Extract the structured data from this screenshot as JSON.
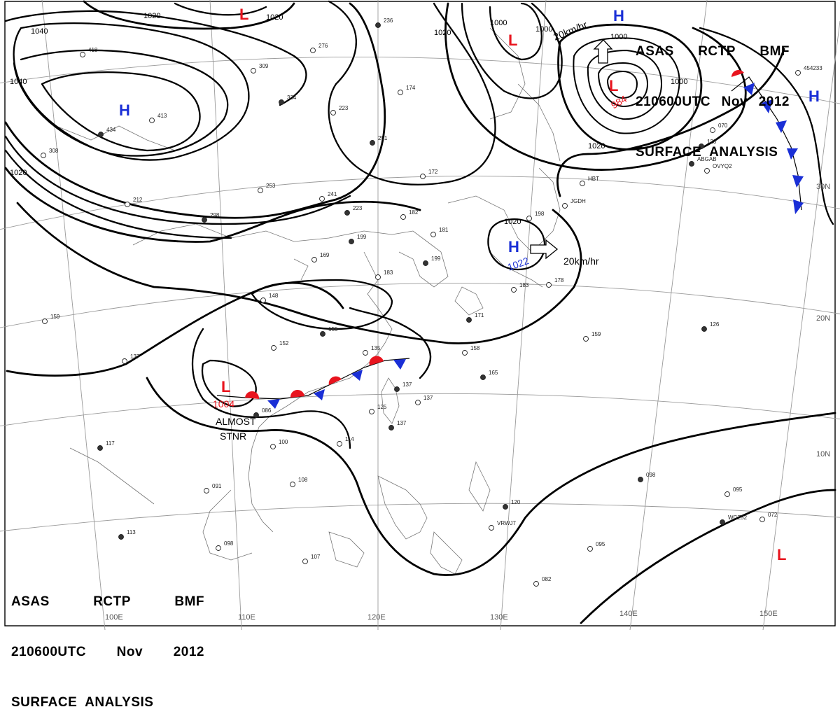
{
  "header": {
    "line1": [
      "ASAS",
      "RCTP",
      "BMF"
    ],
    "line2": [
      "210600UTC",
      "Nov",
      "2012"
    ],
    "line3": "SURFACE  ANALYSIS"
  },
  "longitude_labels": [
    "100E",
    "110E",
    "120E",
    "130E",
    "140E",
    "150E"
  ],
  "latitude_labels": [
    "30N",
    "20N",
    "10N"
  ],
  "isobar_labels": [
    "1020",
    "1020",
    "1040",
    "1040",
    "1020",
    "1020",
    "1020",
    "1000",
    "1000",
    "1000",
    "1000",
    "1020"
  ],
  "pressure_centers": [
    {
      "type": "H",
      "value": ""
    },
    {
      "type": "L",
      "value": ""
    },
    {
      "type": "L",
      "value": ""
    },
    {
      "type": "L",
      "value": "984"
    },
    {
      "type": "H",
      "value": ""
    },
    {
      "type": "H",
      "value": ""
    },
    {
      "type": "H",
      "value": "1022"
    },
    {
      "type": "L",
      "value": "1004"
    },
    {
      "type": "L",
      "value": ""
    }
  ],
  "motion_labels": [
    "20km/hr",
    "20km/hr"
  ],
  "annotations": [
    "ALMOST",
    "STNR"
  ],
  "station_values": [
    "236",
    "276",
    "309",
    "334",
    "223",
    "174",
    "251",
    "172",
    "182",
    "199",
    "169",
    "181",
    "199",
    "183",
    "148",
    "155",
    "152",
    "135",
    "137",
    "137",
    "125",
    "137",
    "114",
    "100",
    "086",
    "091",
    "108",
    "113",
    "098",
    "107",
    "117",
    "137",
    "159",
    "120",
    "095",
    "082",
    "098",
    "095",
    "072",
    "126",
    "159",
    "158",
    "165",
    "178",
    "183",
    "171",
    "418",
    "413",
    "434",
    "308",
    "212",
    "298",
    "253",
    "241",
    "223",
    "198",
    "070",
    "128",
    "HBT",
    "JGDH",
    "ABGAB",
    "OVYQ2",
    "VRWJ7",
    "WCZ52",
    "454233"
  ],
  "colors": {
    "low_marker": "#e8141e",
    "high_marker": "#1a2fd6",
    "warm_front": "#e8141e",
    "cold_front": "#1a2fd6",
    "isobar": "#000000",
    "grid": "#9a9a9a"
  }
}
